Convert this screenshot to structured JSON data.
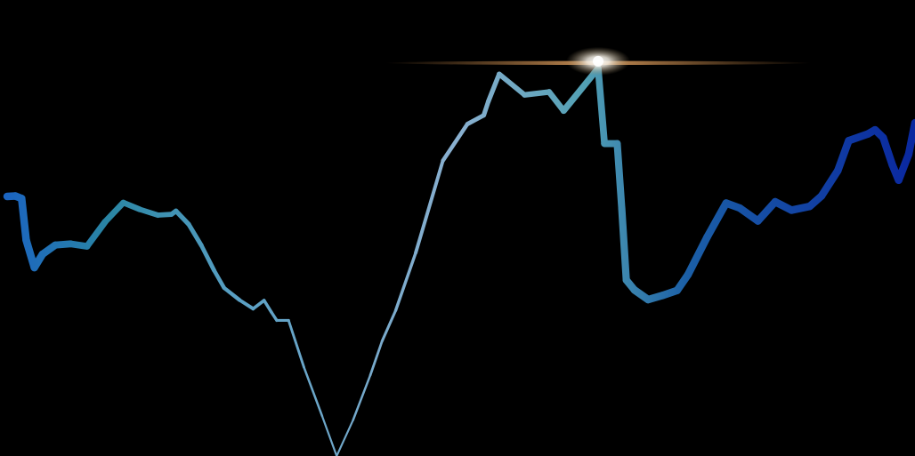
{
  "chart_data": {
    "type": "line",
    "title": "",
    "xlabel": "",
    "ylabel": "",
    "grid": false,
    "legend": "none",
    "xlim": [
      0,
      100
    ],
    "ylim": [
      0,
      100
    ],
    "series": [
      {
        "values": [
          [
            0,
            62.4
          ],
          [
            0.9,
            62.5
          ],
          [
            1.6,
            61.9
          ],
          [
            2.1,
            51.9
          ],
          [
            3.0,
            45.3
          ],
          [
            3.9,
            48.5
          ],
          [
            5.3,
            50.7
          ],
          [
            7.0,
            51.0
          ],
          [
            8.8,
            50.4
          ],
          [
            10.8,
            56.3
          ],
          [
            12.8,
            60.9
          ],
          [
            14.6,
            59.3
          ],
          [
            16.6,
            57.9
          ],
          [
            18.1,
            58.1
          ],
          [
            18.6,
            58.9
          ],
          [
            20.0,
            55.7
          ],
          [
            21.4,
            50.6
          ],
          [
            22.8,
            44.6
          ],
          [
            23.9,
            40.4
          ],
          [
            25.6,
            37.5
          ],
          [
            27.1,
            35.4
          ],
          [
            28.3,
            37.4
          ],
          [
            29.1,
            34.6
          ],
          [
            29.7,
            32.6
          ],
          [
            31.0,
            32.6
          ],
          [
            32.7,
            21.3
          ],
          [
            34.7,
            9.6
          ],
          [
            36.3,
            0.0
          ],
          [
            38.1,
            8.6
          ],
          [
            40.0,
            19.4
          ],
          [
            41.3,
            27.6
          ],
          [
            42.8,
            35.0
          ],
          [
            45.0,
            48.8
          ],
          [
            48.0,
            71.0
          ],
          [
            50.7,
            79.8
          ],
          [
            52.5,
            81.9
          ],
          [
            53.0,
            85.2
          ],
          [
            54.2,
            91.8
          ],
          [
            57.0,
            86.8
          ],
          [
            59.7,
            87.5
          ],
          [
            61.3,
            83.0
          ],
          [
            65.1,
            93.2
          ],
          [
            65.8,
            75.1
          ],
          [
            67.2,
            75.1
          ],
          [
            67.7,
            59.6
          ],
          [
            68.2,
            42.3
          ],
          [
            69.1,
            39.9
          ],
          [
            70.6,
            37.6
          ],
          [
            72.2,
            38.6
          ],
          [
            73.8,
            39.8
          ],
          [
            75.0,
            43.6
          ],
          [
            77.1,
            52.6
          ],
          [
            79.2,
            60.8
          ],
          [
            80.7,
            59.6
          ],
          [
            82.7,
            56.5
          ],
          [
            84.6,
            61.1
          ],
          [
            86.4,
            59.1
          ],
          [
            88.4,
            60.0
          ],
          [
            89.7,
            62.5
          ],
          [
            91.5,
            68.6
          ],
          [
            92.7,
            75.8
          ],
          [
            94.8,
            77.4
          ],
          [
            95.6,
            78.4
          ],
          [
            96.5,
            76.5
          ],
          [
            97.5,
            70.0
          ],
          [
            98.2,
            66.3
          ],
          [
            99.3,
            72.5
          ],
          [
            100,
            80.1
          ]
        ]
      }
    ]
  }
}
